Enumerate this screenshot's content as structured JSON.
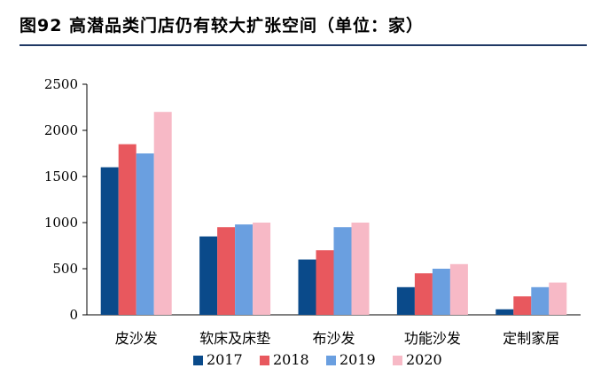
{
  "header": {
    "title": "图92 高潜品类门店仍有较大扩张空间（单位：家）"
  },
  "colors": {
    "title_rule": "#1f3864",
    "axis": "#000000"
  },
  "chart_data": {
    "type": "bar",
    "title": "",
    "xlabel": "",
    "ylabel": "",
    "categories": [
      "皮沙发",
      "软床及床垫",
      "布沙发",
      "功能沙发",
      "定制家居"
    ],
    "ylim": [
      0,
      2500
    ],
    "yticks": [
      0,
      500,
      1000,
      1500,
      2000,
      2500
    ],
    "grid": false,
    "legend": "bottom",
    "series": [
      {
        "name": "2017",
        "color": "#0a4a8a",
        "values": [
          1600,
          850,
          600,
          300,
          60
        ]
      },
      {
        "name": "2018",
        "color": "#e8585e",
        "values": [
          1850,
          950,
          700,
          450,
          200
        ]
      },
      {
        "name": "2019",
        "color": "#6a9fe0",
        "values": [
          1750,
          980,
          950,
          500,
          300
        ]
      },
      {
        "name": "2020",
        "color": "#f7b9c6",
        "values": [
          2200,
          1000,
          1000,
          550,
          350
        ]
      }
    ]
  }
}
